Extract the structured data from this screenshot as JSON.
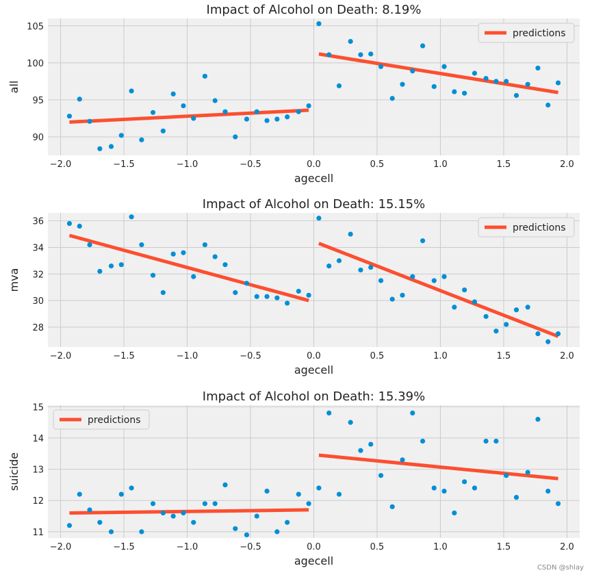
{
  "watermark": "CSDN @shlay",
  "colors": {
    "background": "#ffffff",
    "panel": "#f0f0f0",
    "grid": "#cbcbcb",
    "points": "#008fd5",
    "line": "#fc4f30",
    "text": "#222222"
  },
  "chart_data": [
    {
      "type": "scatter",
      "title": "Impact of Alcohol on Death: 8.19%",
      "xlabel": "agecell",
      "ylabel": "all",
      "xlim": [
        -2.1,
        2.1
      ],
      "ylim": [
        87.5,
        106
      ],
      "xticks": [
        "−2.0",
        "−1.5",
        "−1.0",
        "−0.5",
        "0.0",
        "0.5",
        "1.0",
        "1.5",
        "2.0"
      ],
      "yticks": [
        "90",
        "95",
        "100",
        "105"
      ],
      "legend": "predictions",
      "legend_position": "upper-right",
      "series": [
        {
          "name": "observed",
          "type": "scatter",
          "x": [
            -1.93,
            -1.85,
            -1.77,
            -1.69,
            -1.6,
            -1.52,
            -1.44,
            -1.36,
            -1.27,
            -1.19,
            -1.11,
            -1.03,
            -0.95,
            -0.86,
            -0.78,
            -0.7,
            -0.62,
            -0.53,
            -0.45,
            -0.37,
            -0.29,
            -0.21,
            -0.12,
            -0.04,
            0.04,
            0.12,
            0.2,
            0.29,
            0.37,
            0.45,
            0.53,
            0.62,
            0.7,
            0.78,
            0.86,
            0.95,
            1.03,
            1.11,
            1.19,
            1.27,
            1.36,
            1.44,
            1.52,
            1.6,
            1.69,
            1.77,
            1.85,
            1.93
          ],
          "y": [
            92.8,
            95.1,
            92.1,
            88.4,
            88.7,
            90.2,
            96.2,
            89.6,
            93.3,
            90.8,
            95.8,
            94.2,
            92.5,
            98.2,
            94.9,
            93.4,
            90.0,
            92.4,
            93.4,
            92.2,
            92.4,
            92.7,
            93.4,
            94.2,
            105.3,
            101.1,
            96.9,
            102.9,
            101.1,
            101.2,
            99.5,
            95.2,
            97.1,
            98.9,
            102.3,
            96.8,
            99.5,
            96.1,
            95.9,
            98.6,
            97.9,
            97.5,
            97.5,
            95.6,
            97.1,
            99.3,
            94.3,
            97.3
          ]
        },
        {
          "name": "predictions",
          "type": "line",
          "x": [
            -1.93,
            -0.04
          ],
          "y": [
            92.0,
            93.6
          ]
        },
        {
          "name": "predictions",
          "type": "line",
          "x": [
            0.04,
            1.93
          ],
          "y": [
            101.2,
            96.0
          ]
        }
      ]
    },
    {
      "type": "scatter",
      "title": "Impact of Alcohol on Death: 15.15%",
      "xlabel": "agecell",
      "ylabel": "mva",
      "xlim": [
        -2.1,
        2.1
      ],
      "ylim": [
        26.5,
        36.6
      ],
      "xticks": [
        "−2.0",
        "−1.5",
        "−1.0",
        "−0.5",
        "0.0",
        "0.5",
        "1.0",
        "1.5",
        "2.0"
      ],
      "yticks": [
        "28",
        "30",
        "32",
        "34",
        "36"
      ],
      "legend": "predictions",
      "legend_position": "upper-right",
      "series": [
        {
          "name": "observed",
          "type": "scatter",
          "x": [
            -1.93,
            -1.85,
            -1.77,
            -1.69,
            -1.6,
            -1.52,
            -1.44,
            -1.36,
            -1.27,
            -1.19,
            -1.11,
            -1.03,
            -0.95,
            -0.86,
            -0.78,
            -0.7,
            -0.62,
            -0.53,
            -0.45,
            -0.37,
            -0.29,
            -0.21,
            -0.12,
            -0.04,
            0.04,
            0.12,
            0.2,
            0.29,
            0.37,
            0.45,
            0.53,
            0.62,
            0.7,
            0.78,
            0.86,
            0.95,
            1.03,
            1.11,
            1.19,
            1.27,
            1.36,
            1.44,
            1.52,
            1.6,
            1.69,
            1.77,
            1.85,
            1.93
          ],
          "y": [
            35.8,
            35.6,
            34.2,
            32.2,
            32.6,
            32.7,
            36.3,
            34.2,
            31.9,
            30.6,
            33.5,
            33.6,
            31.8,
            34.2,
            33.3,
            32.7,
            30.6,
            31.3,
            30.3,
            30.3,
            30.2,
            29.8,
            30.7,
            30.4,
            36.2,
            32.6,
            33.0,
            35.0,
            32.3,
            32.5,
            31.5,
            30.1,
            30.4,
            31.8,
            34.5,
            31.5,
            31.8,
            29.5,
            30.8,
            29.9,
            28.8,
            27.7,
            28.2,
            29.3,
            29.5,
            27.5,
            26.9,
            27.5
          ]
        },
        {
          "name": "predictions",
          "type": "line",
          "x": [
            -1.93,
            -0.04
          ],
          "y": [
            34.9,
            30.0
          ]
        },
        {
          "name": "predictions",
          "type": "line",
          "x": [
            0.04,
            1.93
          ],
          "y": [
            34.3,
            27.3
          ]
        }
      ]
    },
    {
      "type": "scatter",
      "title": "Impact of Alcohol on Death: 15.39%",
      "xlabel": "agecell",
      "ylabel": "suicide",
      "xlim": [
        -2.1,
        2.1
      ],
      "ylim": [
        10.8,
        15.05
      ],
      "xticks": [
        "−2.0",
        "−1.5",
        "−1.0",
        "−0.5",
        "0.0",
        "0.5",
        "1.0",
        "1.5",
        "2.0"
      ],
      "yticks": [
        "11",
        "12",
        "13",
        "14",
        "15"
      ],
      "legend": "predictions",
      "legend_position": "upper-left",
      "series": [
        {
          "name": "observed",
          "type": "scatter",
          "x": [
            -1.93,
            -1.85,
            -1.77,
            -1.69,
            -1.6,
            -1.52,
            -1.44,
            -1.36,
            -1.27,
            -1.19,
            -1.11,
            -1.03,
            -0.95,
            -0.86,
            -0.78,
            -0.7,
            -0.62,
            -0.53,
            -0.45,
            -0.37,
            -0.29,
            -0.21,
            -0.12,
            -0.04,
            0.04,
            0.12,
            0.2,
            0.29,
            0.37,
            0.45,
            0.53,
            0.62,
            0.7,
            0.78,
            0.86,
            0.95,
            1.03,
            1.11,
            1.19,
            1.27,
            1.36,
            1.44,
            1.52,
            1.6,
            1.69,
            1.77,
            1.85,
            1.93
          ],
          "y": [
            11.2,
            12.2,
            11.7,
            11.3,
            11.0,
            12.2,
            12.4,
            11.0,
            11.9,
            11.6,
            11.5,
            11.6,
            11.3,
            11.9,
            11.9,
            12.5,
            11.1,
            10.9,
            11.5,
            12.3,
            11.0,
            11.3,
            12.2,
            11.9,
            12.4,
            14.8,
            12.2,
            14.5,
            13.6,
            13.8,
            12.8,
            11.8,
            13.3,
            14.8,
            13.9,
            12.4,
            12.3,
            11.6,
            12.6,
            12.4,
            13.9,
            13.9,
            12.8,
            12.1,
            12.9,
            14.6,
            12.3,
            11.9
          ]
        },
        {
          "name": "predictions",
          "type": "line",
          "x": [
            -1.93,
            -0.04
          ],
          "y": [
            11.6,
            11.7
          ]
        },
        {
          "name": "predictions",
          "type": "line",
          "x": [
            0.04,
            1.93
          ],
          "y": [
            13.45,
            12.7
          ]
        }
      ]
    }
  ]
}
